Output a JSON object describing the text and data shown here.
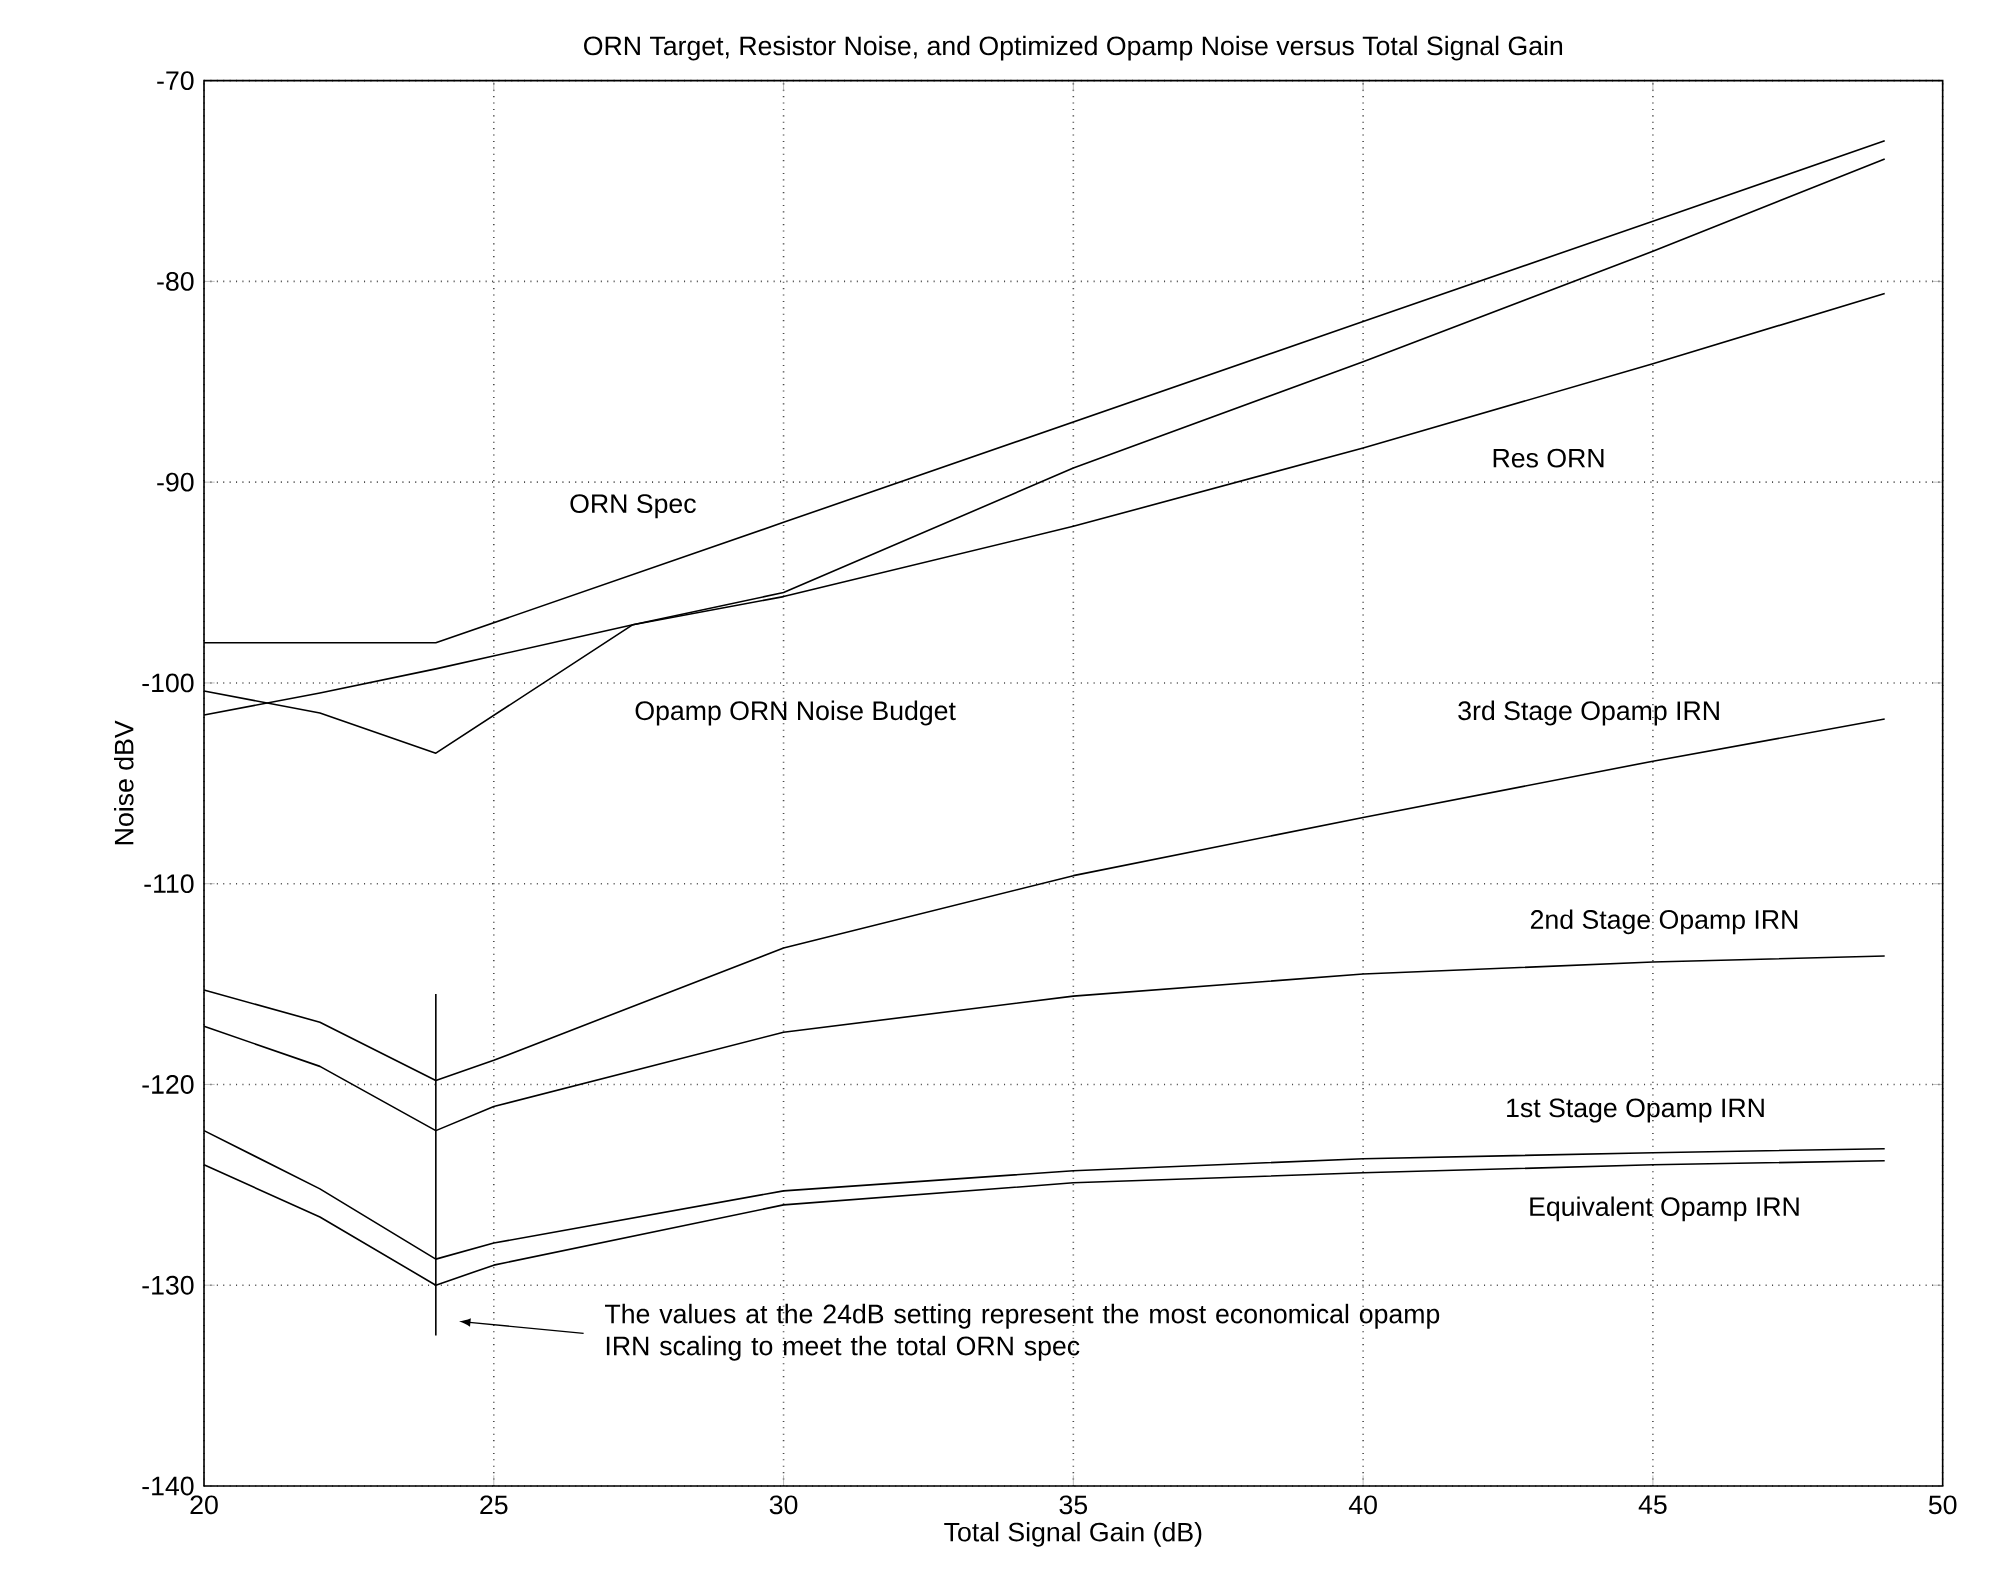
{
  "chart_data": {
    "type": "line",
    "title": "ORN Target, Resistor Noise, and  Optimized Opamp Noise versus Total Signal Gain",
    "xlabel": "Total Signal Gain (dB)",
    "ylabel": "Noise dBV",
    "xlim": [
      20,
      50
    ],
    "ylim": [
      -140,
      -70
    ],
    "xticks": [
      20,
      25,
      30,
      35,
      40,
      45,
      50
    ],
    "yticks": [
      -140,
      -130,
      -120,
      -110,
      -100,
      -90,
      -80,
      -70
    ],
    "grid": true,
    "legend": false,
    "marker": "none",
    "line_style": "solid",
    "series": [
      {
        "name": "ORN Spec",
        "color": "#000000",
        "x": [
          20,
          24,
          30,
          35,
          40,
          45,
          49
        ],
        "values": [
          -98,
          -98,
          -92,
          -87,
          -82,
          -77,
          -73
        ]
      },
      {
        "name": "Res ORN",
        "color": "#000000",
        "x": [
          20,
          22,
          24,
          27.4,
          30,
          35,
          40,
          45,
          49
        ],
        "values": [
          -101.6,
          -100.5,
          -99.3,
          -97.1,
          -95.7,
          -92.2,
          -88.3,
          -84.1,
          -80.6
        ]
      },
      {
        "name": "Opamp ORN Noise Budget",
        "color": "#000000",
        "x": [
          20,
          22,
          24,
          27.4,
          30,
          35,
          40,
          45,
          49
        ],
        "values": [
          -100.4,
          -101.5,
          -103.5,
          -97.1,
          -95.5,
          -89.3,
          -84,
          -78.5,
          -73.9
        ]
      },
      {
        "name": "3rd Stage Opamp IRN",
        "color": "#000000",
        "x": [
          20,
          22,
          24,
          25,
          30,
          35,
          40,
          45,
          49
        ],
        "values": [
          -115.3,
          -116.9,
          -119.8,
          -118.8,
          -113.2,
          -109.6,
          -106.7,
          -103.9,
          -101.8
        ]
      },
      {
        "name": "2nd Stage Opamp IRN",
        "color": "#000000",
        "x": [
          20,
          22,
          24,
          25,
          30,
          35,
          40,
          45,
          49
        ],
        "values": [
          -117.1,
          -119.1,
          -122.3,
          -121.1,
          -117.4,
          -115.6,
          -114.5,
          -113.9,
          -113.6
        ]
      },
      {
        "name": "1st Stage Opamp IRN",
        "color": "#000000",
        "x": [
          20,
          22,
          24,
          25,
          30,
          35,
          40,
          45,
          49
        ],
        "values": [
          -122.3,
          -125.2,
          -128.7,
          -127.9,
          -125.3,
          -124.3,
          -123.7,
          -123.4,
          -123.2
        ]
      },
      {
        "name": "Equivalent Opamp IRN",
        "color": "#000000",
        "x": [
          20,
          22,
          24,
          25,
          30,
          35,
          40,
          45,
          49
        ],
        "values": [
          -124.0,
          -126.6,
          -130,
          -129.0,
          -126.0,
          -124.9,
          -124.4,
          -124.0,
          -123.8
        ]
      },
      {
        "color": "#000000",
        "x": [
          24,
          24
        ],
        "values": [
          -115.5,
          -132.5
        ]
      }
    ],
    "annotations": [
      "The values at the 24dB setting represent the most economical opamp IRN scaling to meet the  total ORN spec"
    ]
  }
}
